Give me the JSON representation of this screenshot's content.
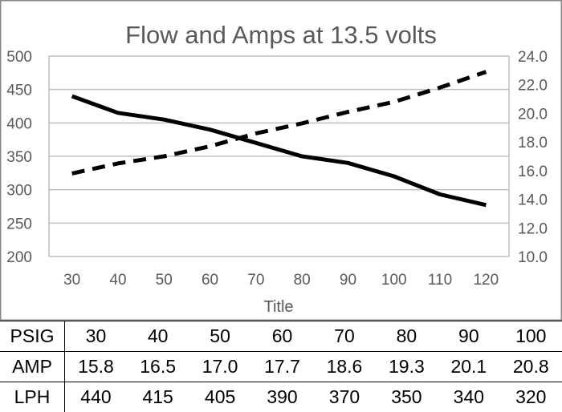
{
  "chart_data": {
    "type": "line",
    "title": "Flow and Amps at 13.5 volts",
    "xlabel": "Title",
    "x": [
      30,
      40,
      50,
      60,
      70,
      80,
      90,
      100,
      110,
      120
    ],
    "x_tick_labels": [
      "30",
      "40",
      "50",
      "60",
      "70",
      "80",
      "90",
      "100",
      "110",
      "120"
    ],
    "y_left": {
      "ylim": [
        200,
        500
      ],
      "ticks": [
        "200",
        "250",
        "300",
        "350",
        "400",
        "450",
        "500"
      ]
    },
    "y_right": {
      "ylim": [
        10.0,
        24.0
      ],
      "ticks": [
        "10.0",
        "12.0",
        "14.0",
        "16.0",
        "18.0",
        "20.0",
        "22.0",
        "24.0"
      ]
    },
    "grid": true,
    "series": [
      {
        "axis": "left",
        "style": "solid",
        "color": "#000000",
        "values": [
          440,
          415,
          405,
          390,
          370,
          350,
          340,
          320,
          293,
          277
        ]
      },
      {
        "axis": "right",
        "style": "dashed",
        "color": "#000000",
        "values": [
          15.8,
          16.5,
          17.0,
          17.7,
          18.6,
          19.3,
          20.1,
          20.8,
          21.8,
          22.9
        ]
      }
    ]
  },
  "table": {
    "rows": [
      {
        "label": "PSIG",
        "cells": [
          "30",
          "40",
          "50",
          "60",
          "70",
          "80",
          "90",
          "100"
        ]
      },
      {
        "label": "AMP",
        "cells": [
          "15.8",
          "16.5",
          "17.0",
          "17.7",
          "18.6",
          "19.3",
          "20.1",
          "20.8"
        ]
      },
      {
        "label": "LPH",
        "cells": [
          "440",
          "415",
          "405",
          "390",
          "370",
          "350",
          "340",
          "320"
        ]
      }
    ]
  }
}
